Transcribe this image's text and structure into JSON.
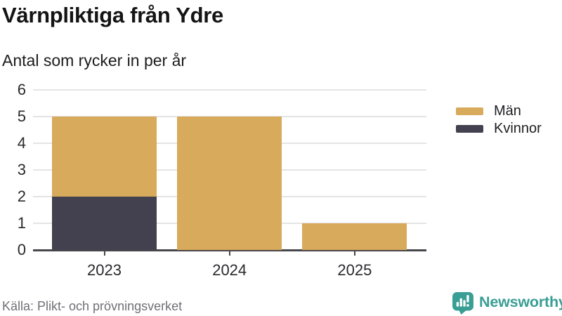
{
  "header": {
    "title": "Värnpliktiga från Ydre",
    "subtitle": "Antal som rycker in per år"
  },
  "chart_data": {
    "type": "bar",
    "stacked": true,
    "title": "Värnpliktiga från Ydre",
    "subtitle": "Antal som rycker in per år",
    "categories": [
      "2023",
      "2024",
      "2025"
    ],
    "series": [
      {
        "name": "Män",
        "color": "#D8AA5C",
        "values": [
          3,
          5,
          1
        ]
      },
      {
        "name": "Kvinnor",
        "color": "#43414F",
        "values": [
          2,
          0,
          0
        ]
      }
    ],
    "stack_order_bottom_to_top": [
      "Kvinnor",
      "Män"
    ],
    "totals": [
      5,
      5,
      1
    ],
    "xlabel": "",
    "ylabel": "",
    "ylim": [
      0,
      6
    ],
    "yticks": [
      0,
      1,
      2,
      3,
      4,
      5,
      6
    ],
    "grid": true,
    "legend_position": "right-top"
  },
  "legend": {
    "items": [
      {
        "label": "Män",
        "color": "#D8AA5C"
      },
      {
        "label": "Kvinnor",
        "color": "#43414F"
      }
    ]
  },
  "footer": {
    "source": "Källa: Plikt- och prövningsverket",
    "brand": "Newsworthy"
  },
  "icons": {
    "newsworthy_icon": "speech-bubble-bar-chart-exclamation"
  },
  "colors": {
    "men": "#D8AA5C",
    "women": "#43414F",
    "grid": "#E4E4E4",
    "axis": "#47464A",
    "brand_teal": "#399E94",
    "title_text": "#141414",
    "tick_text": "#2A2A2E",
    "source_text": "#6F6F76"
  }
}
